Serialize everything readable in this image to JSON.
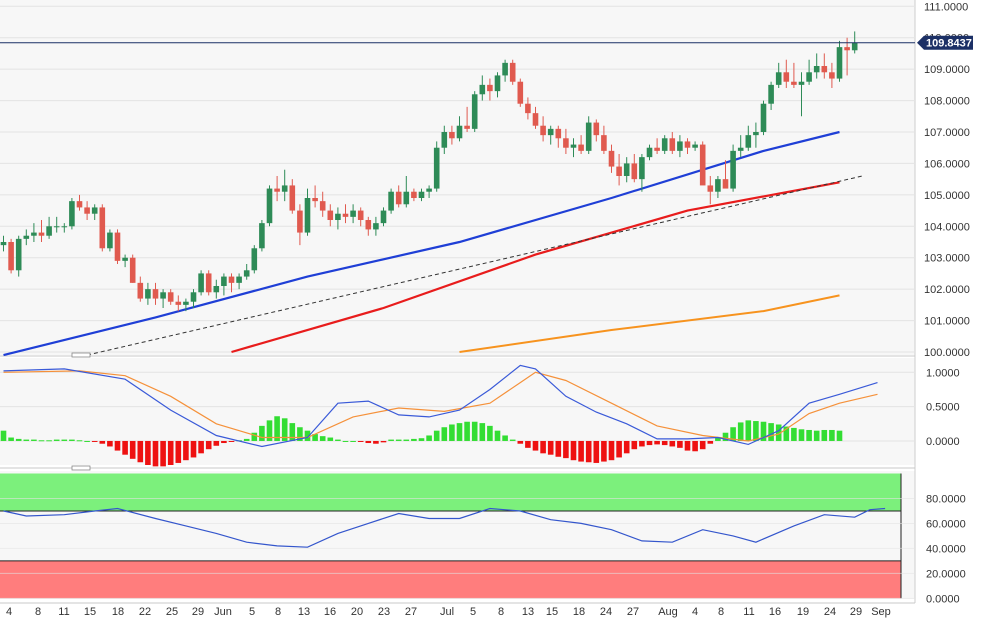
{
  "chart_data": [
    {
      "type": "candlestick",
      "panel": "price",
      "title": "",
      "last_price": "109.8437",
      "y_ticks": [
        "111.0000",
        "110.0000",
        "109.0000",
        "108.0000",
        "107.0000",
        "106.0000",
        "105.0000",
        "104.0000",
        "103.0000",
        "102.0000",
        "101.0000",
        "100.0000"
      ],
      "ylim": [
        100,
        111.2
      ],
      "candles": [
        [
          103.4,
          103.7,
          103.2,
          103.5
        ],
        [
          103.5,
          103.6,
          102.5,
          102.6
        ],
        [
          102.6,
          103.7,
          102.4,
          103.6
        ],
        [
          103.6,
          103.9,
          103.4,
          103.7
        ],
        [
          103.7,
          104.1,
          103.5,
          103.8
        ],
        [
          103.8,
          104.2,
          103.5,
          103.7
        ],
        [
          103.7,
          104.3,
          103.6,
          104.0
        ],
        [
          104.0,
          104.3,
          103.8,
          104.0
        ],
        [
          104.0,
          104.1,
          103.8,
          104.0
        ],
        [
          104.0,
          104.9,
          103.9,
          104.8
        ],
        [
          104.8,
          105.0,
          104.5,
          104.6
        ],
        [
          104.6,
          104.8,
          104.2,
          104.4
        ],
        [
          104.4,
          104.7,
          104.2,
          104.6
        ],
        [
          104.6,
          104.7,
          103.2,
          103.3
        ],
        [
          103.3,
          103.9,
          103.2,
          103.8
        ],
        [
          103.8,
          103.9,
          102.8,
          102.9
        ],
        [
          102.9,
          103.1,
          102.7,
          103.0
        ],
        [
          103.0,
          103.1,
          102.2,
          102.2
        ],
        [
          102.2,
          102.4,
          101.6,
          101.7
        ],
        [
          101.7,
          102.2,
          101.5,
          102.0
        ],
        [
          102.0,
          102.2,
          101.5,
          101.7
        ],
        [
          101.7,
          102.0,
          101.4,
          101.9
        ],
        [
          101.9,
          102.0,
          101.5,
          101.6
        ],
        [
          101.6,
          101.8,
          101.3,
          101.5
        ],
        [
          101.5,
          101.7,
          101.3,
          101.6
        ],
        [
          101.6,
          102.0,
          101.4,
          101.9
        ],
        [
          101.9,
          102.6,
          101.8,
          102.5
        ],
        [
          102.5,
          102.6,
          101.8,
          101.9
        ],
        [
          101.9,
          102.3,
          101.7,
          102.1
        ],
        [
          102.1,
          102.5,
          101.8,
          102.4
        ],
        [
          102.4,
          102.5,
          101.9,
          102.2
        ],
        [
          102.2,
          102.5,
          102.0,
          102.4
        ],
        [
          102.4,
          102.8,
          102.3,
          102.6
        ],
        [
          102.6,
          103.4,
          102.5,
          103.3
        ],
        [
          103.3,
          104.2,
          103.2,
          104.1
        ],
        [
          104.1,
          105.3,
          104.0,
          105.2
        ],
        [
          105.2,
          105.6,
          104.8,
          105.1
        ],
        [
          105.1,
          105.8,
          104.8,
          105.3
        ],
        [
          105.3,
          105.5,
          104.4,
          104.5
        ],
        [
          104.5,
          104.7,
          103.4,
          103.8
        ],
        [
          103.8,
          105.2,
          103.7,
          104.9
        ],
        [
          104.9,
          105.3,
          104.6,
          104.8
        ],
        [
          104.8,
          105.1,
          104.3,
          104.5
        ],
        [
          104.5,
          104.7,
          104.0,
          104.2
        ],
        [
          104.2,
          104.6,
          103.9,
          104.4
        ],
        [
          104.4,
          104.7,
          104.1,
          104.3
        ],
        [
          104.3,
          104.7,
          104.1,
          104.5
        ],
        [
          104.5,
          104.6,
          104.0,
          104.2
        ],
        [
          104.2,
          104.3,
          103.7,
          103.9
        ],
        [
          103.9,
          104.3,
          103.7,
          104.1
        ],
        [
          104.1,
          104.6,
          104.0,
          104.5
        ],
        [
          104.5,
          105.2,
          104.4,
          105.1
        ],
        [
          105.1,
          105.3,
          104.6,
          104.7
        ],
        [
          104.7,
          105.6,
          104.6,
          105.1
        ],
        [
          105.1,
          105.2,
          104.8,
          104.9
        ],
        [
          104.9,
          105.2,
          104.8,
          105.1
        ],
        [
          105.1,
          105.3,
          104.9,
          105.2
        ],
        [
          105.2,
          106.7,
          105.1,
          106.5
        ],
        [
          106.5,
          107.2,
          106.3,
          107.0
        ],
        [
          107.0,
          107.2,
          106.6,
          106.8
        ],
        [
          106.8,
          107.5,
          106.7,
          107.2
        ],
        [
          107.2,
          107.8,
          107.0,
          107.1
        ],
        [
          107.1,
          108.3,
          107.0,
          108.2
        ],
        [
          108.2,
          108.8,
          108.0,
          108.5
        ],
        [
          108.5,
          108.7,
          108.0,
          108.3
        ],
        [
          108.3,
          108.9,
          108.1,
          108.8
        ],
        [
          108.8,
          109.3,
          108.6,
          109.2
        ],
        [
          109.2,
          109.3,
          108.5,
          108.6
        ],
        [
          108.6,
          108.7,
          107.8,
          107.9
        ],
        [
          107.9,
          108.1,
          107.4,
          107.6
        ],
        [
          107.6,
          107.8,
          107.1,
          107.2
        ],
        [
          107.2,
          107.5,
          106.7,
          106.9
        ],
        [
          106.9,
          107.2,
          106.6,
          107.1
        ],
        [
          107.1,
          107.2,
          106.5,
          106.8
        ],
        [
          106.8,
          107.1,
          106.3,
          106.5
        ],
        [
          106.5,
          106.8,
          106.2,
          106.6
        ],
        [
          106.6,
          106.9,
          106.3,
          106.4
        ],
        [
          106.4,
          107.5,
          106.3,
          107.3
        ],
        [
          107.3,
          107.4,
          106.7,
          106.9
        ],
        [
          106.9,
          107.2,
          106.3,
          106.4
        ],
        [
          106.4,
          106.6,
          105.7,
          105.9
        ],
        [
          105.9,
          106.3,
          105.3,
          105.6
        ],
        [
          105.6,
          106.2,
          105.4,
          106.0
        ],
        [
          106.0,
          106.3,
          105.4,
          105.5
        ],
        [
          105.5,
          106.3,
          105.1,
          106.2
        ],
        [
          106.2,
          106.6,
          106.1,
          106.5
        ],
        [
          106.5,
          106.8,
          106.3,
          106.4
        ],
        [
          106.4,
          106.9,
          106.3,
          106.8
        ],
        [
          106.8,
          107.0,
          106.3,
          106.4
        ],
        [
          106.4,
          106.9,
          106.2,
          106.7
        ],
        [
          106.7,
          106.8,
          106.3,
          106.5
        ],
        [
          106.5,
          106.7,
          106.4,
          106.6
        ],
        [
          106.6,
          106.7,
          105.4,
          105.3
        ],
        [
          105.3,
          105.6,
          104.7,
          105.1
        ],
        [
          105.1,
          105.6,
          104.9,
          105.5
        ],
        [
          105.5,
          106.1,
          105.3,
          105.2
        ],
        [
          105.2,
          106.6,
          105.1,
          106.4
        ],
        [
          106.4,
          106.9,
          106.2,
          106.5
        ],
        [
          106.5,
          107.2,
          106.4,
          106.9
        ],
        [
          106.9,
          107.3,
          106.5,
          107.0
        ],
        [
          107.0,
          108.0,
          106.9,
          107.9
        ],
        [
          107.9,
          108.6,
          107.7,
          108.5
        ],
        [
          108.5,
          109.2,
          108.4,
          108.9
        ],
        [
          108.9,
          109.3,
          108.4,
          108.6
        ],
        [
          108.6,
          109.2,
          108.4,
          108.5
        ],
        [
          108.5,
          108.9,
          107.5,
          108.6
        ],
        [
          108.6,
          109.3,
          108.5,
          108.9
        ],
        [
          108.9,
          109.5,
          108.7,
          109.1
        ],
        [
          109.1,
          109.5,
          108.7,
          108.9
        ],
        [
          108.9,
          109.2,
          108.4,
          108.7
        ],
        [
          108.7,
          109.9,
          108.6,
          109.7
        ],
        [
          109.7,
          110.0,
          108.8,
          109.6
        ],
        [
          109.6,
          110.2,
          109.5,
          109.84
        ]
      ],
      "ma_blue": [
        [
          0,
          99.9
        ],
        [
          20,
          101.1
        ],
        [
          40,
          102.4
        ],
        [
          60,
          103.5
        ],
        [
          80,
          104.9
        ],
        [
          100,
          106.4
        ],
        [
          110,
          107.0
        ]
      ],
      "ma_red": [
        [
          30,
          100.0
        ],
        [
          50,
          101.4
        ],
        [
          70,
          103.1
        ],
        [
          90,
          104.5
        ],
        [
          110,
          105.4
        ]
      ],
      "ma_orange": [
        [
          60,
          100.0
        ],
        [
          80,
          100.7
        ],
        [
          100,
          101.3
        ],
        [
          110,
          101.8
        ]
      ],
      "trend_line": [
        [
          11,
          99.9
        ],
        [
          113,
          105.6
        ]
      ],
      "horizontal_line": 109.84
    },
    {
      "type": "line",
      "panel": "oscillator",
      "y_ticks": [
        "1.0000",
        "0.5000",
        "0.0000"
      ],
      "ylim": [
        -0.35,
        1.15
      ],
      "blue": [
        [
          0,
          1.02
        ],
        [
          8,
          1.05
        ],
        [
          16,
          0.9
        ],
        [
          22,
          0.45
        ],
        [
          28,
          0.08
        ],
        [
          34,
          -0.08
        ],
        [
          40,
          0.05
        ],
        [
          44,
          0.55
        ],
        [
          48,
          0.58
        ],
        [
          52,
          0.38
        ],
        [
          56,
          0.35
        ],
        [
          60,
          0.45
        ],
        [
          64,
          0.75
        ],
        [
          68,
          1.1
        ],
        [
          70,
          1.05
        ],
        [
          74,
          0.65
        ],
        [
          78,
          0.42
        ],
        [
          82,
          0.25
        ],
        [
          86,
          0.03
        ],
        [
          90,
          0.03
        ],
        [
          94,
          0.05
        ],
        [
          98,
          -0.05
        ],
        [
          102,
          0.15
        ],
        [
          106,
          0.55
        ],
        [
          110,
          0.68
        ],
        [
          115,
          0.85
        ]
      ],
      "orange": [
        [
          0,
          1.0
        ],
        [
          10,
          1.02
        ],
        [
          16,
          0.95
        ],
        [
          22,
          0.65
        ],
        [
          28,
          0.25
        ],
        [
          34,
          0.05
        ],
        [
          40,
          0.05
        ],
        [
          46,
          0.35
        ],
        [
          52,
          0.48
        ],
        [
          58,
          0.43
        ],
        [
          64,
          0.55
        ],
        [
          70,
          1.0
        ],
        [
          74,
          0.88
        ],
        [
          80,
          0.55
        ],
        [
          86,
          0.22
        ],
        [
          92,
          0.08
        ],
        [
          98,
          0.0
        ],
        [
          102,
          0.1
        ],
        [
          106,
          0.4
        ],
        [
          110,
          0.55
        ],
        [
          115,
          0.68
        ]
      ],
      "hist": [
        0.15,
        0.05,
        0.03,
        0.02,
        0.02,
        0.01,
        0.01,
        0.02,
        0.02,
        0.02,
        0.01,
        0.0,
        -0.01,
        -0.04,
        -0.08,
        -0.14,
        -0.2,
        -0.26,
        -0.31,
        -0.35,
        -0.37,
        -0.37,
        -0.35,
        -0.32,
        -0.28,
        -0.24,
        -0.18,
        -0.12,
        -0.07,
        -0.03,
        -0.01,
        0.01,
        0.03,
        0.12,
        0.22,
        0.3,
        0.36,
        0.33,
        0.26,
        0.2,
        0.15,
        0.1,
        0.07,
        0.05,
        0.02,
        0.0,
        0.0,
        -0.01,
        -0.03,
        -0.04,
        -0.02,
        0.02,
        0.02,
        0.02,
        0.03,
        0.04,
        0.08,
        0.15,
        0.2,
        0.24,
        0.26,
        0.28,
        0.28,
        0.26,
        0.22,
        0.15,
        0.08,
        0.02,
        -0.04,
        -0.1,
        -0.14,
        -0.18,
        -0.2,
        -0.23,
        -0.25,
        -0.28,
        -0.3,
        -0.31,
        -0.32,
        -0.3,
        -0.28,
        -0.24,
        -0.18,
        -0.12,
        -0.08,
        -0.06,
        -0.05,
        -0.06,
        -0.08,
        -0.1,
        -0.14,
        -0.15,
        -0.12,
        -0.04,
        0.05,
        0.12,
        0.2,
        0.27,
        0.3,
        0.29,
        0.28,
        0.26,
        0.24,
        0.21,
        0.19,
        0.17,
        0.16,
        0.15,
        0.16,
        0.16,
        0.15
      ]
    },
    {
      "type": "line",
      "panel": "rsi",
      "y_ticks": [
        "80.0000",
        "60.0000",
        "40.0000",
        "20.0000",
        "0.0000"
      ],
      "ylim": [
        -0.5,
        102
      ],
      "overbought": 70,
      "oversold": 30,
      "values": [
        [
          0,
          70
        ],
        [
          3,
          66
        ],
        [
          8,
          67
        ],
        [
          12,
          70
        ],
        [
          15,
          72
        ],
        [
          20,
          64
        ],
        [
          24,
          58
        ],
        [
          28,
          52
        ],
        [
          32,
          45
        ],
        [
          36,
          42
        ],
        [
          40,
          41
        ],
        [
          44,
          52
        ],
        [
          48,
          60
        ],
        [
          52,
          68
        ],
        [
          56,
          64
        ],
        [
          60,
          64
        ],
        [
          64,
          72
        ],
        [
          68,
          70
        ],
        [
          72,
          63
        ],
        [
          76,
          60
        ],
        [
          80,
          55
        ],
        [
          84,
          46
        ],
        [
          88,
          45
        ],
        [
          92,
          55
        ],
        [
          96,
          50
        ],
        [
          99,
          45
        ],
        [
          104,
          58
        ],
        [
          108,
          67
        ],
        [
          112,
          65
        ],
        [
          114,
          71
        ],
        [
          116,
          72
        ]
      ]
    }
  ],
  "x_axis": {
    "labels": [
      "4",
      "8",
      "11",
      "15",
      "18",
      "22",
      "25",
      "29",
      "Jun",
      "5",
      "8",
      "13",
      "16",
      "20",
      "23",
      "27",
      "Jul",
      "5",
      "8",
      "13",
      "15",
      "18",
      "24",
      "27",
      "Aug",
      "4",
      "8",
      "11",
      "16",
      "19",
      "24",
      "29",
      "Sep"
    ]
  },
  "colors": {
    "bull": "#2e8b57",
    "bear": "#e05a4f",
    "ma_blue": "#1f3fd6",
    "ma_red": "#e81c1c",
    "ma_orange": "#f7931e",
    "hist_up": "#33dd33",
    "hist_down": "#ee1111",
    "osc_blue": "#3a5ad8",
    "osc_orange": "#f5913a",
    "rsi_line": "#3456cc",
    "overbought_zone": "#7cf07c",
    "oversold_zone": "#ff7d7d",
    "price_label": "#1c3066"
  }
}
